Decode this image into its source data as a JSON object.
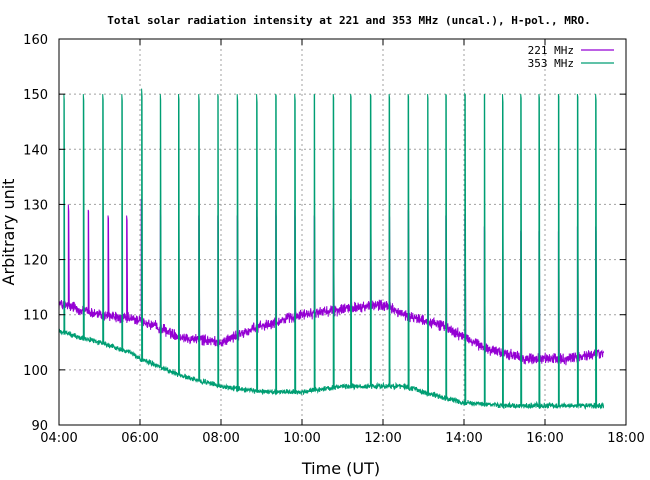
{
  "chart_data": {
    "type": "line",
    "title": "Total solar radiation intensity at 221 and 353 MHz (uncal.), H-pol., MRO.",
    "xlabel": "Time (UT)",
    "ylabel": "Arbitrary unit",
    "x_unit": "hours UT",
    "xlim": [
      4,
      18
    ],
    "ylim": [
      90,
      160
    ],
    "x_ticks": [
      4,
      6,
      8,
      10,
      12,
      14,
      16,
      18
    ],
    "x_tick_labels": [
      "04:00",
      "06:00",
      "08:00",
      "10:00",
      "12:00",
      "14:00",
      "16:00",
      "18:00"
    ],
    "y_ticks": [
      90,
      100,
      110,
      120,
      130,
      140,
      150,
      160
    ],
    "y_tick_labels": [
      "90",
      "100",
      "110",
      "120",
      "130",
      "140",
      "150",
      "160"
    ],
    "grid": true,
    "legend_position": "top-right",
    "data_end": 17.45,
    "series": [
      {
        "name": "221 MHz",
        "color": "#9400d3",
        "baseline": [
          [
            4.0,
            112
          ],
          [
            5.0,
            110
          ],
          [
            6.0,
            109
          ],
          [
            7.0,
            106
          ],
          [
            8.0,
            105
          ],
          [
            9.0,
            108
          ],
          [
            10.0,
            110
          ],
          [
            11.0,
            111
          ],
          [
            12.0,
            112
          ],
          [
            12.5,
            110
          ],
          [
            13.5,
            108
          ],
          [
            14.5,
            104
          ],
          [
            15.5,
            102
          ],
          [
            16.5,
            102
          ],
          [
            17.4,
            103
          ]
        ],
        "spikes": [
          [
            4.23,
            130
          ],
          [
            4.72,
            129
          ],
          [
            5.21,
            128
          ],
          [
            5.67,
            128
          ],
          [
            6.03,
            131
          ],
          [
            6.5,
            129
          ],
          [
            6.95,
            128
          ],
          [
            7.45,
            128
          ],
          [
            7.92,
            128
          ],
          [
            8.4,
            128
          ],
          [
            8.88,
            129
          ],
          [
            9.35,
            129
          ],
          [
            9.82,
            129
          ],
          [
            10.3,
            128
          ],
          [
            10.77,
            129
          ],
          [
            11.2,
            131
          ],
          [
            11.69,
            129
          ],
          [
            12.15,
            129
          ],
          [
            12.62,
            129
          ],
          [
            13.1,
            129
          ],
          [
            13.55,
            128
          ],
          [
            14.02,
            128
          ],
          [
            14.5,
            126
          ],
          [
            14.95,
            125
          ],
          [
            15.4,
            125
          ],
          [
            15.85,
            125
          ],
          [
            16.33,
            125
          ],
          [
            16.8,
            126
          ],
          [
            17.25,
            126
          ]
        ]
      },
      {
        "name": "353 MHz",
        "color": "#009e73",
        "baseline": [
          [
            4.0,
            107
          ],
          [
            5.0,
            105
          ],
          [
            5.8,
            103
          ],
          [
            6.0,
            102
          ],
          [
            7.0,
            99
          ],
          [
            7.5,
            98
          ],
          [
            8.0,
            97
          ],
          [
            9.0,
            96
          ],
          [
            10.0,
            96
          ],
          [
            11.0,
            97
          ],
          [
            12.0,
            97
          ],
          [
            12.5,
            97
          ],
          [
            13.5,
            95
          ],
          [
            14.0,
            94
          ],
          [
            15.0,
            93.5
          ],
          [
            16.0,
            93.5
          ],
          [
            17.4,
            93.5
          ]
        ],
        "spikes": [
          [
            4.12,
            150
          ],
          [
            4.6,
            150
          ],
          [
            5.08,
            150
          ],
          [
            5.55,
            150
          ],
          [
            6.04,
            151
          ],
          [
            6.5,
            150
          ],
          [
            6.95,
            150
          ],
          [
            7.45,
            150
          ],
          [
            7.92,
            150
          ],
          [
            8.4,
            150
          ],
          [
            8.88,
            150
          ],
          [
            9.35,
            150
          ],
          [
            9.82,
            150
          ],
          [
            10.3,
            150
          ],
          [
            10.77,
            150
          ],
          [
            11.2,
            150
          ],
          [
            11.69,
            150
          ],
          [
            12.15,
            150
          ],
          [
            12.62,
            150
          ],
          [
            13.1,
            150
          ],
          [
            13.55,
            150
          ],
          [
            14.02,
            150
          ],
          [
            14.5,
            150
          ],
          [
            14.95,
            150
          ],
          [
            15.4,
            150
          ],
          [
            15.85,
            150
          ],
          [
            16.33,
            150
          ],
          [
            16.8,
            150
          ],
          [
            17.25,
            150
          ]
        ]
      }
    ]
  }
}
